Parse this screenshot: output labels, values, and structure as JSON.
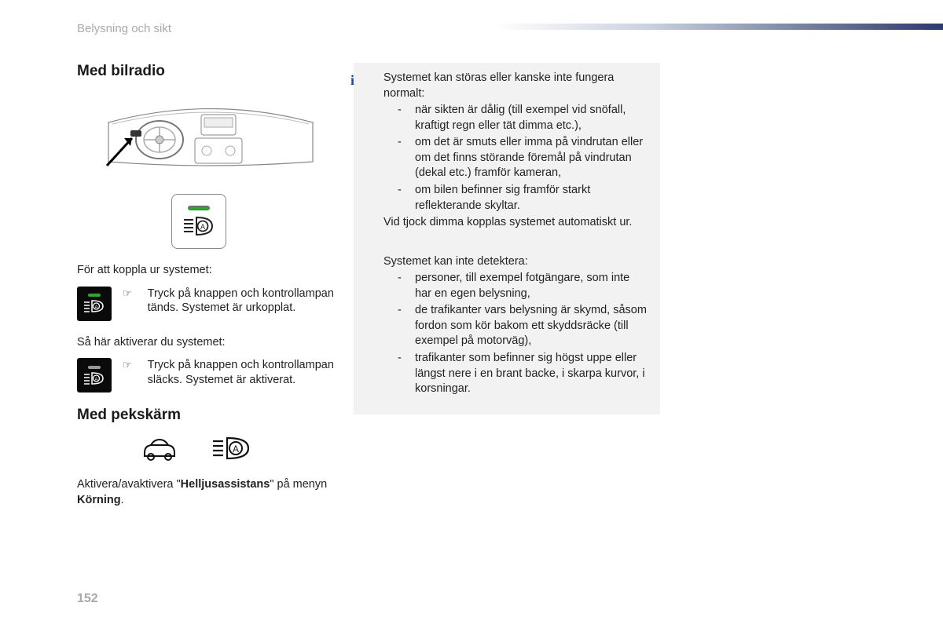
{
  "section_label": "Belysning och sikt",
  "page_number": "152",
  "left": {
    "heading1": "Med bilradio",
    "disengage_intro": "För att koppla ur systemet:",
    "step1_text": "Tryck på knappen och kontrollampan tänds. Systemet är urkopplat.",
    "engage_intro": "Så här aktiverar du systemet:",
    "step2_text": "Tryck på knappen och kontrollampan släcks. Systemet är aktiverat.",
    "heading2": "Med pekskärm",
    "touch_text_pre": "Aktivera/avaktivera \"",
    "touch_bold1": "Helljusassistans",
    "touch_text_mid": "\" på menyn ",
    "touch_bold2": "Körning",
    "touch_text_post": "."
  },
  "info": {
    "block1_intro": "Systemet kan störas eller kanske inte fungera normalt:",
    "block1_items": [
      "när sikten är dålig (till exempel vid snöfall, kraftigt regn eller tät dimma etc.),",
      "om det är smuts eller imma på vindrutan eller om det finns störande föremål på vindrutan (dekal etc.) framför kameran,",
      "om bilen befinner sig framför starkt reflekterande skyltar."
    ],
    "block1_outro": "Vid tjock dimma kopplas systemet automatiskt ur.",
    "block2_intro": "Systemet kan inte detektera:",
    "block2_items": [
      "personer, till exempel fotgängare, som inte har en egen belysning,",
      "de trafikanter vars belysning är skymd, såsom fordon som kör bakom ett skyddsräcke (till exempel på motorväg),",
      "trafikanter som befinner sig högst uppe eller längst nere i en brant backe, i skarpa kurvor, i korsningar."
    ]
  },
  "colors": {
    "led_on": "#2aa82a",
    "led_off": "#bbbbbb",
    "info_bg": "#f2f2f2",
    "grey_text": "#aaaaaa",
    "accent": "#1a4aa0"
  }
}
